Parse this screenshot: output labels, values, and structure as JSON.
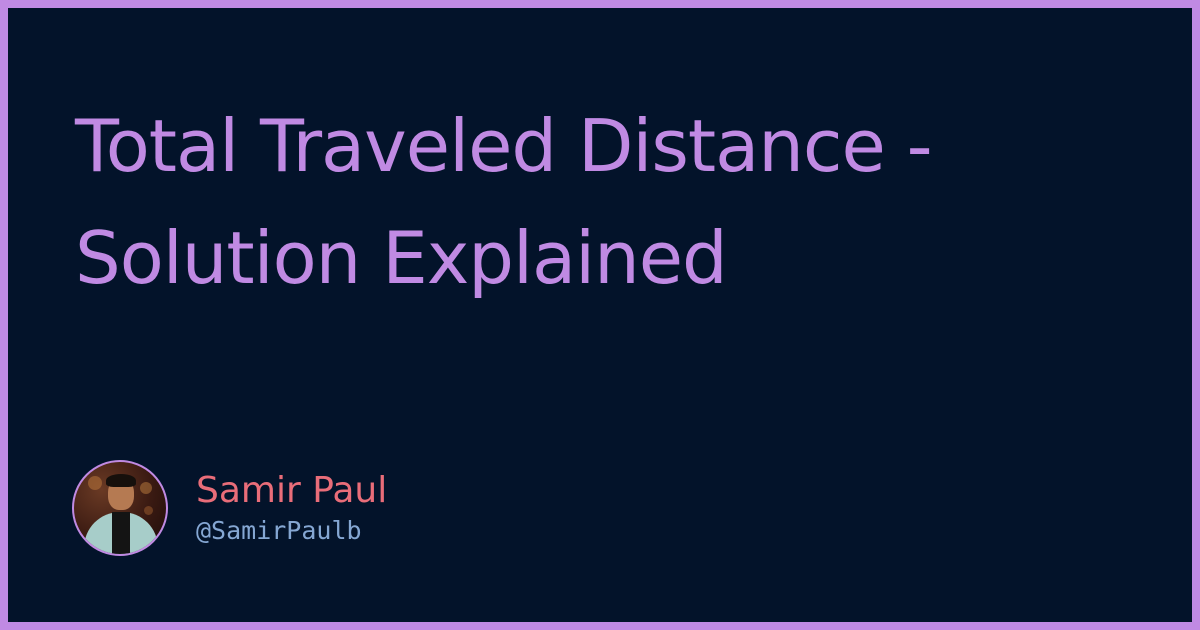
{
  "title": {
    "line1": "Total Traveled Distance -",
    "line2": "Solution Explained"
  },
  "author": {
    "name": "Samir Paul",
    "handle": "@SamirPaulb",
    "avatar_icon": "author-photo"
  },
  "colors": {
    "frame": "#c08ae3",
    "background": "#03132a",
    "title": "#c08ae3",
    "name": "#e96d79",
    "handle": "#85a7d3"
  }
}
